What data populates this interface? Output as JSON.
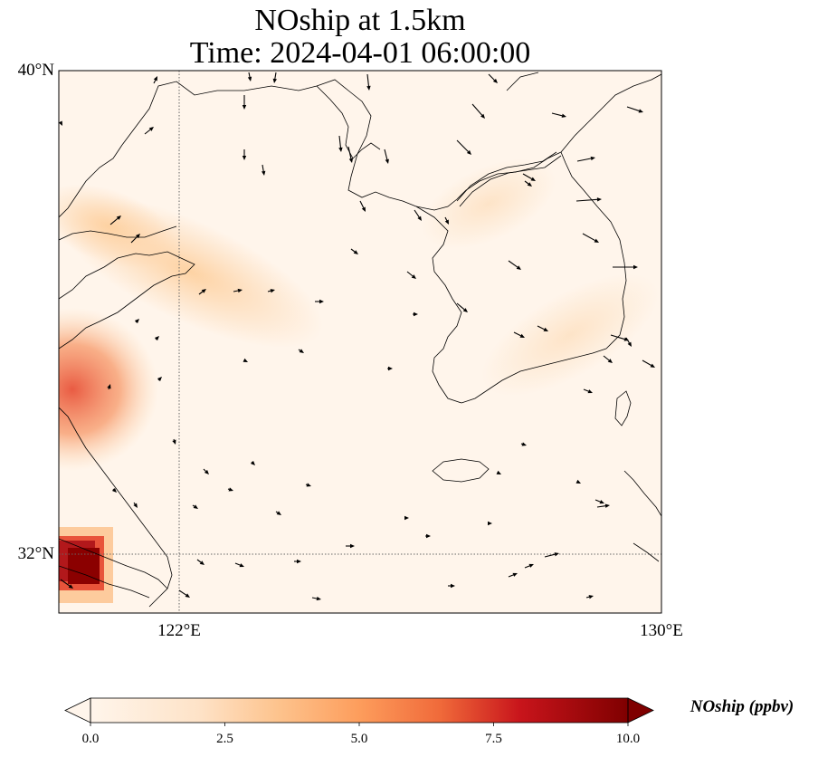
{
  "title": {
    "line1": "NOship at 1.5km",
    "line2": "Time: 2024-04-01 06:00:00"
  },
  "axes": {
    "lat_ticks": [
      {
        "value": 40,
        "label": "40°N"
      },
      {
        "value": 32,
        "label": "32°N"
      }
    ],
    "lon_ticks": [
      {
        "value": 122,
        "label": "122°E"
      },
      {
        "value": 130,
        "label": "130°E"
      }
    ],
    "lon_range": [
      120,
      130
    ],
    "lat_range": [
      31,
      40
    ],
    "gridlines": "dotted"
  },
  "colorbar": {
    "label": "NOship (ppbv)",
    "min": 0,
    "max": 10,
    "ticks": [
      "0.0",
      "2.5",
      "5.0",
      "7.5",
      "10.0"
    ],
    "colormap": [
      "#fff5eb",
      "#fdd0a2",
      "#fd8d3c",
      "#d94801",
      "#a50f15",
      "#7f0000"
    ],
    "extend": "both"
  },
  "colors": {
    "background": "#fff5eb",
    "coast": "#000000",
    "arrow": "#000000"
  }
}
